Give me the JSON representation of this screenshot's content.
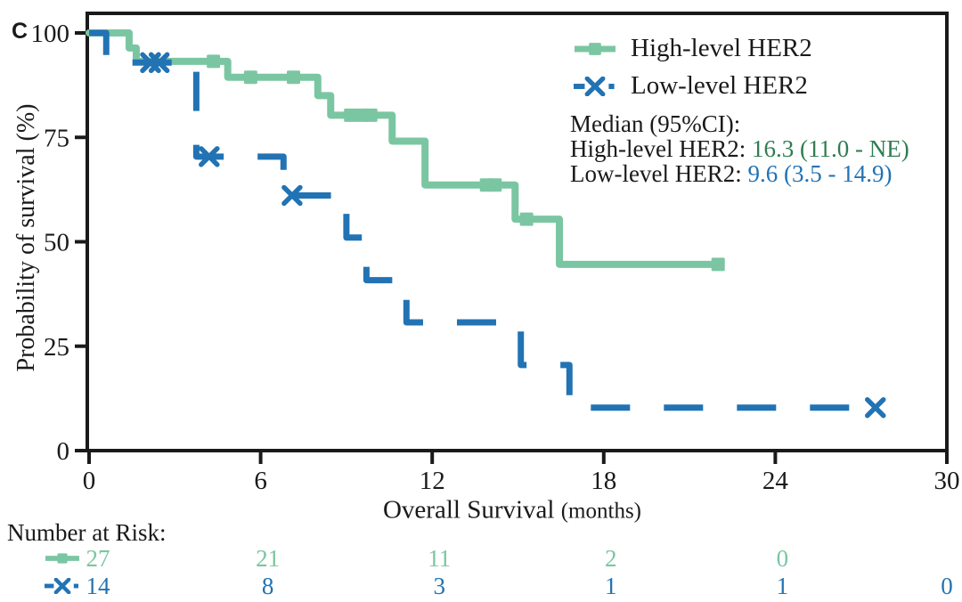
{
  "panel_label": "C",
  "colors": {
    "high_level_line": "#7BC6A2",
    "high_level_text": "#2F7D52",
    "low_level": "#2273B4",
    "axis": "#1a1a1a"
  },
  "chart_data": {
    "type": "line",
    "subtype": "kaplan-meier-step",
    "xlabel_main": "Overall Survival",
    "xlabel_unit": "(months)",
    "ylabel": "Probability of survival (%)",
    "xlim": [
      0,
      30
    ],
    "ylim": [
      0,
      100
    ],
    "xticks": [
      0,
      6,
      12,
      18,
      24,
      30
    ],
    "yticks": [
      0,
      25,
      50,
      75,
      100
    ],
    "grid": false,
    "legend_position": "top-right-inside",
    "series": [
      {
        "name": "High-level HER2",
        "color": "#7BC6A2",
        "style": "solid",
        "marker": "square",
        "steps": [
          [
            0,
            100
          ],
          [
            1.4,
            96.4
          ],
          [
            1.65,
            93.2
          ],
          [
            4.85,
            89.4
          ],
          [
            8.0,
            85.0
          ],
          [
            8.45,
            80.3
          ],
          [
            10.6,
            74.1
          ],
          [
            11.75,
            63.6
          ],
          [
            14.9,
            55.4
          ],
          [
            16.45,
            44.6
          ]
        ],
        "end_x": 22.1,
        "censors": [
          [
            4.35,
            93.2
          ],
          [
            5.65,
            89.4
          ],
          [
            7.15,
            89.4
          ],
          [
            9.15,
            80.3
          ],
          [
            9.55,
            80.3
          ],
          [
            9.85,
            80.3
          ],
          [
            13.9,
            63.6
          ],
          [
            14.2,
            63.6
          ],
          [
            15.3,
            55.4
          ],
          [
            22.0,
            44.6
          ]
        ]
      },
      {
        "name": "Low-level HER2",
        "color": "#2273B4",
        "style": "dashed",
        "marker": "x",
        "steps": [
          [
            0,
            100
          ],
          [
            0.6,
            92.9
          ],
          [
            3.75,
            70.4
          ],
          [
            6.8,
            61.1
          ],
          [
            9.0,
            51.0
          ],
          [
            9.7,
            40.8
          ],
          [
            11.1,
            30.7
          ],
          [
            15.1,
            20.5
          ],
          [
            16.8,
            10.3
          ]
        ],
        "end_x": 27.5,
        "censors": [
          [
            2.15,
            92.9
          ],
          [
            2.45,
            92.9
          ],
          [
            4.2,
            70.4
          ],
          [
            7.1,
            61.1
          ],
          [
            27.5,
            10.3
          ]
        ]
      }
    ]
  },
  "legend": {
    "items": [
      {
        "label": "High-level HER2"
      },
      {
        "label": "Low-level HER2"
      }
    ],
    "median_title": "Median (95%CI):",
    "median_lines": [
      {
        "label": "High-level HER2: ",
        "value": "16.3 (11.0 - NE)"
      },
      {
        "label": "Low-level HER2: ",
        "value": "9.6 (3.5 - 14.9)"
      }
    ]
  },
  "risk_table": {
    "title": "Number at Risk:",
    "columns": [
      0,
      6,
      12,
      18,
      24,
      30
    ],
    "rows": [
      {
        "name": "High-level HER2",
        "values": [
          "27",
          "21",
          "11",
          "2",
          "0",
          ""
        ]
      },
      {
        "name": "Low-level HER2",
        "values": [
          "14",
          "8",
          "3",
          "1",
          "1",
          "0"
        ]
      }
    ]
  }
}
